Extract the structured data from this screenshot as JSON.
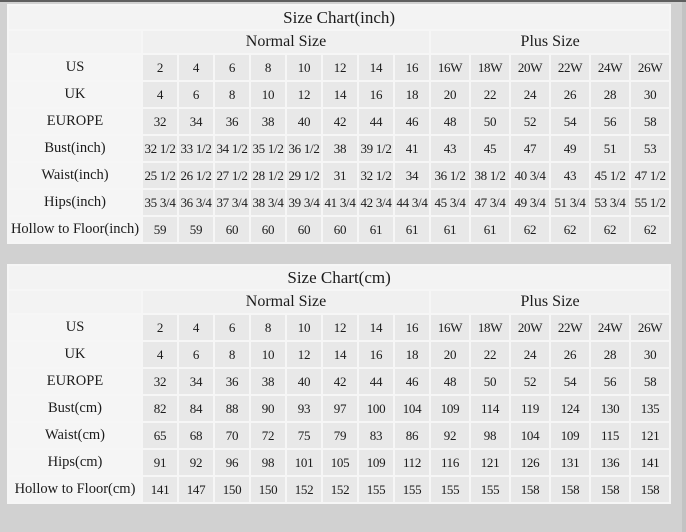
{
  "tables": [
    {
      "title": "Size Chart(inch)",
      "group_headers": [
        "Normal Size",
        "Plus Size"
      ],
      "rows": [
        {
          "label": "US",
          "normal": [
            "2",
            "4",
            "6",
            "8",
            "10",
            "12",
            "14",
            "16"
          ],
          "plus": [
            "16W",
            "18W",
            "20W",
            "22W",
            "24W",
            "26W"
          ]
        },
        {
          "label": "UK",
          "normal": [
            "4",
            "6",
            "8",
            "10",
            "12",
            "14",
            "16",
            "18"
          ],
          "plus": [
            "20",
            "22",
            "24",
            "26",
            "28",
            "30"
          ]
        },
        {
          "label": "EUROPE",
          "normal": [
            "32",
            "34",
            "36",
            "38",
            "40",
            "42",
            "44",
            "46"
          ],
          "plus": [
            "48",
            "50",
            "52",
            "54",
            "56",
            "58"
          ]
        },
        {
          "label": "Bust(inch)",
          "normal": [
            "32 1/2",
            "33 1/2",
            "34 1/2",
            "35 1/2",
            "36 1/2",
            "38",
            "39 1/2",
            "41"
          ],
          "plus": [
            "43",
            "45",
            "47",
            "49",
            "51",
            "53"
          ]
        },
        {
          "label": "Waist(inch)",
          "normal": [
            "25 1/2",
            "26 1/2",
            "27 1/2",
            "28 1/2",
            "29 1/2",
            "31",
            "32 1/2",
            "34"
          ],
          "plus": [
            "36 1/2",
            "38 1/2",
            "40 3/4",
            "43",
            "45 1/2",
            "47 1/2"
          ]
        },
        {
          "label": "Hips(inch)",
          "normal": [
            "35 3/4",
            "36 3/4",
            "37 3/4",
            "38 3/4",
            "39 3/4",
            "41 3/4",
            "42 3/4",
            "44 3/4"
          ],
          "plus": [
            "45 3/4",
            "47 3/4",
            "49 3/4",
            "51 3/4",
            "53 3/4",
            "55 1/2"
          ]
        },
        {
          "label": "Hollow to Floor(inch)",
          "normal": [
            "59",
            "59",
            "60",
            "60",
            "60",
            "60",
            "61",
            "61"
          ],
          "plus": [
            "61",
            "61",
            "62",
            "62",
            "62",
            "62"
          ]
        }
      ]
    },
    {
      "title": "Size Chart(cm)",
      "group_headers": [
        "Normal Size",
        "Plus Size"
      ],
      "rows": [
        {
          "label": "US",
          "normal": [
            "2",
            "4",
            "6",
            "8",
            "10",
            "12",
            "14",
            "16"
          ],
          "plus": [
            "16W",
            "18W",
            "20W",
            "22W",
            "24W",
            "26W"
          ]
        },
        {
          "label": "UK",
          "normal": [
            "4",
            "6",
            "8",
            "10",
            "12",
            "14",
            "16",
            "18"
          ],
          "plus": [
            "20",
            "22",
            "24",
            "26",
            "28",
            "30"
          ]
        },
        {
          "label": "EUROPE",
          "normal": [
            "32",
            "34",
            "36",
            "38",
            "40",
            "42",
            "44",
            "46"
          ],
          "plus": [
            "48",
            "50",
            "52",
            "54",
            "56",
            "58"
          ]
        },
        {
          "label": "Bust(cm)",
          "normal": [
            "82",
            "84",
            "88",
            "90",
            "93",
            "97",
            "100",
            "104"
          ],
          "plus": [
            "109",
            "114",
            "119",
            "124",
            "130",
            "135"
          ]
        },
        {
          "label": "Waist(cm)",
          "normal": [
            "65",
            "68",
            "70",
            "72",
            "75",
            "79",
            "83",
            "86"
          ],
          "plus": [
            "92",
            "98",
            "104",
            "109",
            "115",
            "121"
          ]
        },
        {
          "label": "Hips(cm)",
          "normal": [
            "91",
            "92",
            "96",
            "98",
            "101",
            "105",
            "109",
            "112"
          ],
          "plus": [
            "116",
            "121",
            "126",
            "131",
            "136",
            "141"
          ]
        },
        {
          "label": "Hollow to Floor(cm)",
          "normal": [
            "141",
            "147",
            "150",
            "150",
            "152",
            "152",
            "155",
            "155"
          ],
          "plus": [
            "155",
            "155",
            "158",
            "158",
            "158",
            "158"
          ]
        }
      ]
    }
  ]
}
